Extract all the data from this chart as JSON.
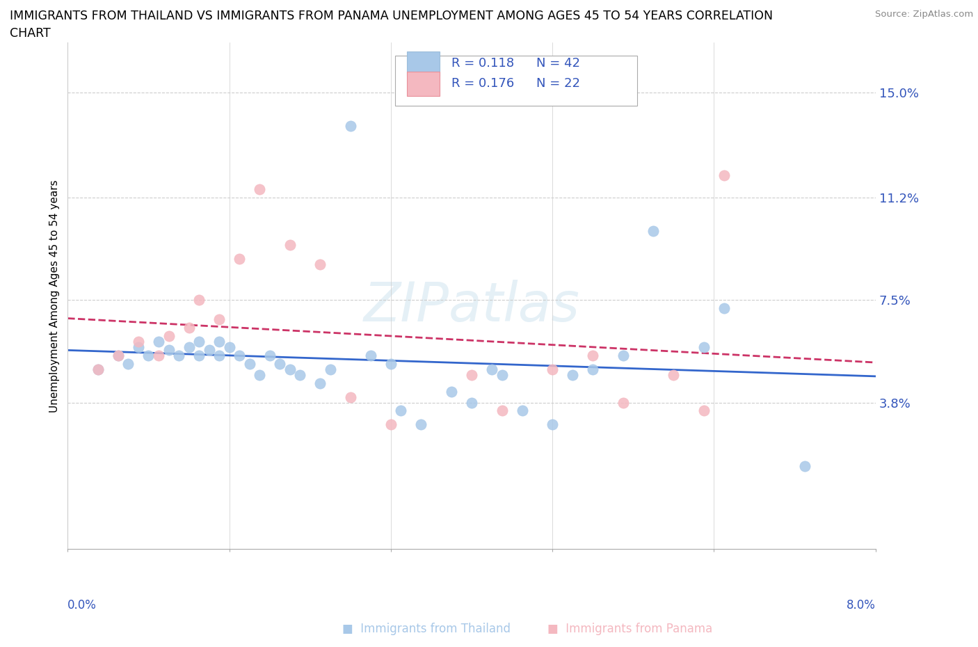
{
  "title_line1": "IMMIGRANTS FROM THAILAND VS IMMIGRANTS FROM PANAMA UNEMPLOYMENT AMONG AGES 45 TO 54 YEARS CORRELATION",
  "title_line2": "CHART",
  "source": "Source: ZipAtlas.com",
  "ylabel": "Unemployment Among Ages 45 to 54 years",
  "xlim": [
    0.0,
    0.08
  ],
  "ylim": [
    -0.015,
    0.168
  ],
  "thailand_color": "#a8c8e8",
  "panama_color": "#f4b8c0",
  "trend_thailand_color": "#3366cc",
  "trend_panama_color": "#cc3366",
  "legend_text_color": "#3355bb",
  "ytick_vals": [
    0.038,
    0.075,
    0.112,
    0.15
  ],
  "ytick_labels": [
    "3.8%",
    "7.5%",
    "11.2%",
    "15.0%"
  ],
  "watermark": "ZIPatlas",
  "background_color": "#ffffff",
  "grid_color": "#cccccc",
  "thailand_x": [
    0.003,
    0.005,
    0.006,
    0.007,
    0.008,
    0.009,
    0.01,
    0.011,
    0.012,
    0.013,
    0.013,
    0.014,
    0.015,
    0.015,
    0.016,
    0.017,
    0.018,
    0.019,
    0.02,
    0.021,
    0.022,
    0.023,
    0.025,
    0.026,
    0.028,
    0.03,
    0.032,
    0.033,
    0.035,
    0.038,
    0.04,
    0.042,
    0.043,
    0.045,
    0.048,
    0.05,
    0.052,
    0.055,
    0.058,
    0.063,
    0.065,
    0.073
  ],
  "thailand_y": [
    0.05,
    0.055,
    0.052,
    0.058,
    0.055,
    0.06,
    0.057,
    0.055,
    0.058,
    0.06,
    0.055,
    0.057,
    0.06,
    0.055,
    0.058,
    0.055,
    0.052,
    0.048,
    0.055,
    0.052,
    0.05,
    0.048,
    0.045,
    0.05,
    0.138,
    0.055,
    0.052,
    0.035,
    0.03,
    0.042,
    0.038,
    0.05,
    0.048,
    0.035,
    0.03,
    0.048,
    0.05,
    0.055,
    0.1,
    0.058,
    0.072,
    0.015
  ],
  "panama_x": [
    0.003,
    0.005,
    0.007,
    0.009,
    0.01,
    0.012,
    0.013,
    0.015,
    0.017,
    0.019,
    0.022,
    0.025,
    0.028,
    0.032,
    0.04,
    0.043,
    0.048,
    0.052,
    0.055,
    0.06,
    0.063,
    0.065
  ],
  "panama_y": [
    0.05,
    0.055,
    0.06,
    0.055,
    0.062,
    0.065,
    0.075,
    0.068,
    0.09,
    0.115,
    0.095,
    0.088,
    0.04,
    0.03,
    0.048,
    0.035,
    0.05,
    0.055,
    0.038,
    0.048,
    0.035,
    0.12
  ]
}
